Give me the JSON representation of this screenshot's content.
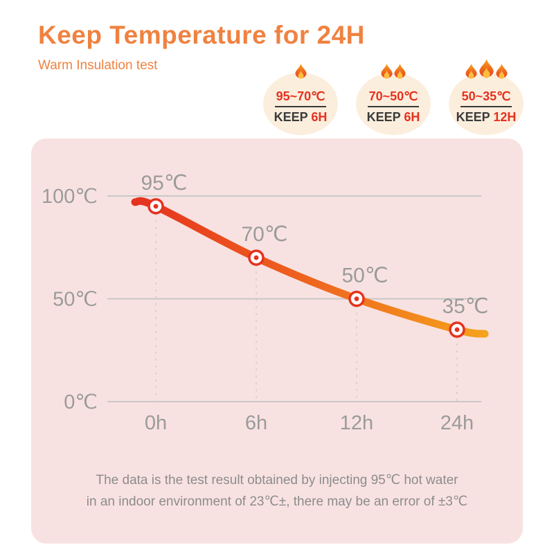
{
  "header": {
    "title": "Keep Temperature for 24H",
    "subtitle": "Warm Insulation test"
  },
  "badges": [
    {
      "flames": 1,
      "range": "95~70℃",
      "keep_label": "KEEP",
      "keep_value": "6H"
    },
    {
      "flames": 2,
      "range": "70~50℃",
      "keep_label": "KEEP",
      "keep_value": "6H"
    },
    {
      "flames": 3,
      "range": "50~35℃",
      "keep_label": "KEEP",
      "keep_value": "12H"
    }
  ],
  "chart_data": {
    "type": "line",
    "title": "",
    "xlabel": "",
    "ylabel": "",
    "x": [
      0,
      6,
      12,
      24
    ],
    "xticks": [
      "0h",
      "6h",
      "12h",
      "24h"
    ],
    "values": [
      95,
      70,
      50,
      35
    ],
    "point_labels": [
      "95℃",
      "70℃",
      "50℃",
      "35℃"
    ],
    "yticks": [
      {
        "label": "100℃",
        "value": 100
      },
      {
        "label": "50℃",
        "value": 50
      },
      {
        "label": "0℃",
        "value": 0
      }
    ],
    "ylim": [
      0,
      100
    ],
    "grid": "horizontal",
    "legend": "none",
    "line_colors": [
      "#E5321F",
      "#EF6A1E",
      "#F5A21C"
    ],
    "marker_color": "#E5321F",
    "dash_color": "#DDD2C2",
    "grid_color": "#C8C8C8"
  },
  "footer": {
    "line1": "The data is the test result obtained by injecting 95℃ hot water",
    "line2": "in an indoor environment of 23℃±, there may be an error of ±3℃"
  },
  "colors": {
    "accent_orange": "#EF8240",
    "accent_red": "#E5321F",
    "panel_pink": "#F8E2E1",
    "bubble_cream": "#FCEEDD",
    "label_gray": "#9B9B9B",
    "footer_gray": "#8C8C8C",
    "dark_text": "#3A3A3A"
  }
}
